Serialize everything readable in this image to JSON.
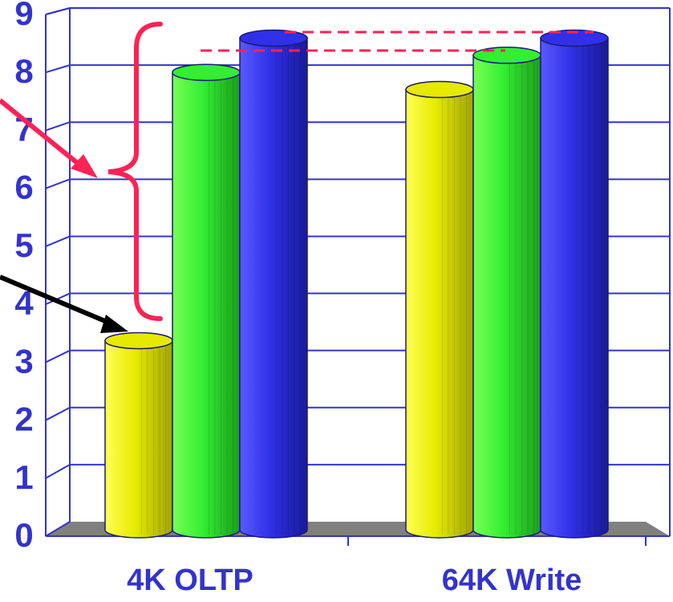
{
  "chart_data": {
    "type": "bar",
    "title": "",
    "xlabel": "",
    "ylabel": "",
    "categories": [
      "4K OLTP",
      "64K Write"
    ],
    "series": [
      {
        "color": "#e6ea00",
        "values": [
          3.2,
          7.6
        ]
      },
      {
        "color": "#33ee33",
        "values": [
          7.9,
          8.2
        ]
      },
      {
        "color": "#3030e8",
        "values": [
          8.5,
          8.5
        ]
      }
    ],
    "ylim": [
      0,
      9
    ],
    "yticks": [
      "0",
      "1",
      "2",
      "3",
      "4",
      "5",
      "6",
      "7",
      "8",
      "9"
    ],
    "grid": true,
    "legend": "none",
    "colors": {
      "axis": "#3333cc",
      "floor": "#808080",
      "annotation_red": "#ff2255",
      "annotation_black": "#000000"
    }
  }
}
